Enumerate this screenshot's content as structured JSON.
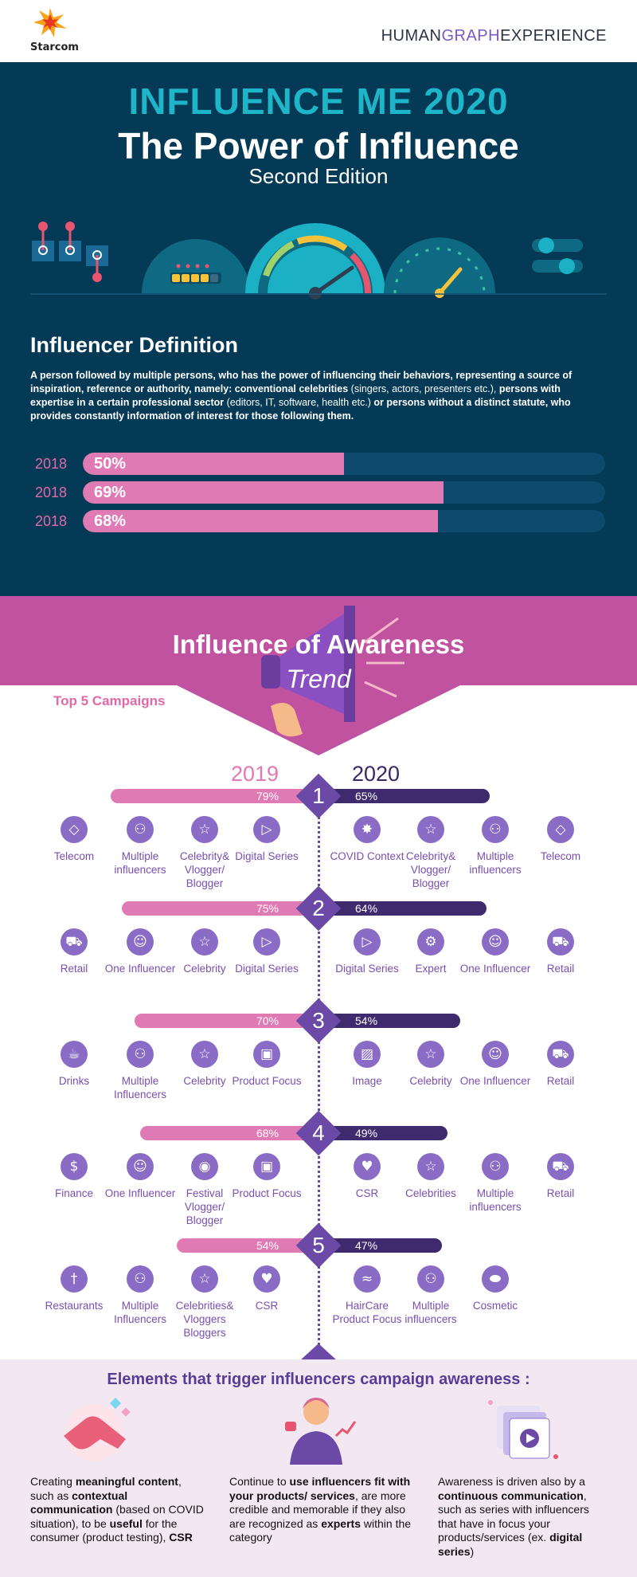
{
  "header": {
    "logo": "Starcom",
    "brand_a": "HUMAN",
    "brand_b": "GRAPH",
    "brand_c": "EXPERIENCE"
  },
  "hero": {
    "title": "INFLUENCE ME 2020",
    "subtitle": "The Power of Influence",
    "edition": "Second Edition"
  },
  "definition": {
    "title": "Influencer Definition",
    "p1": "A person followed by multiple persons, who has the power of influencing their behaviors, representing a source of inspiration, reference or authority, namely: conventional celebrities",
    "p2": " (singers, actors, presenters etc.),",
    "p3": " persons with expertise in a certain professional sector",
    "p4": " (editors, IT, software, health etc.)",
    "p5": " or persons without a distinct statute, who provides constantly information of interest for those following them.",
    "bars": [
      {
        "year": "2018",
        "label": "50%",
        "value": 0.5
      },
      {
        "year": "2018",
        "label": "69%",
        "value": 0.69
      },
      {
        "year": "2018",
        "label": "68%",
        "value": 0.68
      }
    ]
  },
  "awareness": {
    "title": "Influence of Awareness",
    "subtitle": "Trend",
    "top5": "Top 5 Campaigns",
    "year_left": "2019",
    "year_right": "2020",
    "ranks": [
      {
        "n": "1",
        "l": "79%",
        "r": "65%",
        "lv": 79,
        "rv": 65,
        "left": [
          [
            "tag-icon",
            "Telecom"
          ],
          [
            "group-icon",
            "Multiple influencers"
          ],
          [
            "star-icon",
            "Celebrity& Vlogger/ Blogger"
          ],
          [
            "play-icon",
            "Digital Series"
          ]
        ],
        "right": [
          [
            "virus-icon",
            "COVID Context"
          ],
          [
            "star-icon",
            "Celebrity& Vlogger/ Blogger"
          ],
          [
            "group-icon",
            "Multiple influencers"
          ],
          [
            "tag-icon",
            "Telecom"
          ]
        ]
      },
      {
        "n": "2",
        "l": "75%",
        "r": "64%",
        "lv": 75,
        "rv": 64,
        "left": [
          [
            "cart-icon",
            "Retail"
          ],
          [
            "person-icon",
            "One Influencer"
          ],
          [
            "star-icon",
            "Celebrity"
          ],
          [
            "play-icon",
            "Digital Series"
          ]
        ],
        "right": [
          [
            "play-icon",
            "Digital Series"
          ],
          [
            "gear-icon",
            "Expert"
          ],
          [
            "person-icon",
            "One Influencer"
          ],
          [
            "cart-icon",
            "Retail"
          ]
        ]
      },
      {
        "n": "3",
        "l": "70%",
        "r": "54%",
        "lv": 70,
        "rv": 54,
        "left": [
          [
            "drink-icon",
            "Drinks"
          ],
          [
            "group-icon",
            "Multiple Influencers"
          ],
          [
            "star-icon",
            "Celebrity"
          ],
          [
            "box-icon",
            "Product Focus"
          ]
        ],
        "right": [
          [
            "image-icon",
            "Image"
          ],
          [
            "star-icon",
            "Celebrity"
          ],
          [
            "person-icon",
            "One Influencer"
          ],
          [
            "cart-icon",
            "Retail"
          ]
        ]
      },
      {
        "n": "4",
        "l": "68%",
        "r": "49%",
        "lv": 68,
        "rv": 49,
        "left": [
          [
            "money-icon",
            "Finance"
          ],
          [
            "person-icon",
            "One Influencer"
          ],
          [
            "camera-icon",
            "Festival Vlogger/ Blogger"
          ],
          [
            "box-icon",
            "Product Focus"
          ]
        ],
        "right": [
          [
            "heart-icon",
            "CSR"
          ],
          [
            "star-icon",
            "Celebrities"
          ],
          [
            "group-icon",
            "Multiple influencers"
          ],
          [
            "cart-icon",
            "Retail"
          ]
        ]
      },
      {
        "n": "5",
        "l": "54%",
        "r": "47%",
        "lv": 54,
        "rv": 47,
        "left": [
          [
            "fork-icon",
            "Restaurants"
          ],
          [
            "group-icon",
            "Multiple Influencers"
          ],
          [
            "star-icon",
            "Celebrities& Vloggers Bloggers"
          ],
          [
            "heart-icon",
            "CSR"
          ]
        ],
        "right": [
          [
            "hair-icon",
            "HairCare Product Focus"
          ],
          [
            "group-icon",
            "Multiple influencers"
          ],
          [
            "cosmetic-icon",
            "Cosmetic"
          ]
        ]
      }
    ]
  },
  "elements": {
    "title": "Elements that trigger influencers campaign awareness :",
    "c1": [
      "Creating ",
      "meaningful content",
      ", such as ",
      "contextual communication",
      " (based on COVID situation), to be ",
      "useful",
      " for the consumer (product testing), ",
      "CSR"
    ],
    "c2": [
      "Continue to ",
      "use influencers fit with your products/ services",
      ", are more credible and memorable if they also are recognized as ",
      "experts",
      " within the category"
    ],
    "c3": [
      "Awareness is driven also by a ",
      "continuous communication",
      ", such as series with influencers that have in focus your products/services (ex. ",
      "digital series",
      ")"
    ]
  },
  "colors": {
    "dark": "#053a57",
    "teal": "#1fb5c9",
    "pink": "#e07ab4",
    "purple": "#3e2a6d",
    "magenta": "#c152a0"
  },
  "icon_glyphs": {
    "tag-icon": "◇",
    "group-icon": "⚇",
    "star-icon": "☆",
    "play-icon": "▷",
    "virus-icon": "✸",
    "cart-icon": "⛟",
    "person-icon": "☺",
    "gear-icon": "⚙",
    "drink-icon": "☕",
    "box-icon": "▣",
    "image-icon": "▨",
    "money-icon": "$",
    "camera-icon": "◉",
    "heart-icon": "♥",
    "fork-icon": "†",
    "hair-icon": "≈",
    "cosmetic-icon": "⬬"
  }
}
